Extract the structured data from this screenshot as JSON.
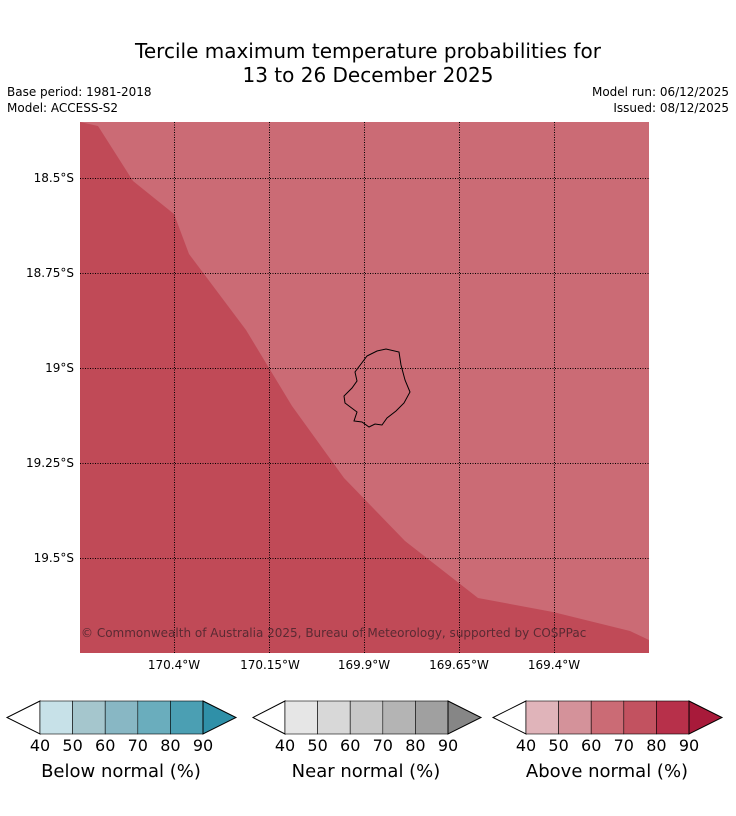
{
  "title": {
    "line1": "Tercile maximum temperature probabilities for",
    "line2": "13 to 26 December 2025"
  },
  "meta": {
    "base_period": "Base period: 1981-2018",
    "model": "Model: ACCESS-S2",
    "model_run": "Model run: 06/12/2025",
    "issued": "Issued: 08/12/2025"
  },
  "map": {
    "y_ticks": [
      "18.5°S",
      "18.75°S",
      "19°S",
      "19.25°S",
      "19.5°S"
    ],
    "x_ticks": [
      "170.4°W",
      "170.15°W",
      "169.9°W",
      "169.65°W",
      "169.4°W"
    ],
    "copyright": "© Commonwealth of Australia 2025, Bureau of Meteorology, supported by COSPPac",
    "zones": [
      {
        "category": "Above normal",
        "range": "70–80%",
        "color": "#c04a57"
      },
      {
        "category": "Above normal",
        "range": "60–70%",
        "color": "#cb6b75"
      }
    ],
    "island_outline_color": "#000000"
  },
  "colorbars": [
    {
      "label": "Below normal (%)",
      "ticks": [
        "40",
        "50",
        "60",
        "70",
        "80",
        "90"
      ],
      "under_color": "#ffffff",
      "colors": [
        "#c7e1e8",
        "#a5c6cd",
        "#88b7c4",
        "#6aadbd",
        "#4b9fb3"
      ],
      "over_color": "#2f90a8"
    },
    {
      "label": "Near normal (%)",
      "ticks": [
        "40",
        "50",
        "60",
        "70",
        "80",
        "90"
      ],
      "under_color": "#ffffff",
      "colors": [
        "#e6e6e6",
        "#d8d8d8",
        "#c8c8c8",
        "#b4b4b4",
        "#a0a0a0"
      ],
      "over_color": "#868686"
    },
    {
      "label": "Above normal (%)",
      "ticks": [
        "40",
        "50",
        "60",
        "70",
        "80",
        "90"
      ],
      "under_color": "#ffffff",
      "colors": [
        "#e0b4ba",
        "#d4929a",
        "#cb6b75",
        "#c25260",
        "#b7304a"
      ],
      "over_color": "#a81a3a"
    }
  ]
}
